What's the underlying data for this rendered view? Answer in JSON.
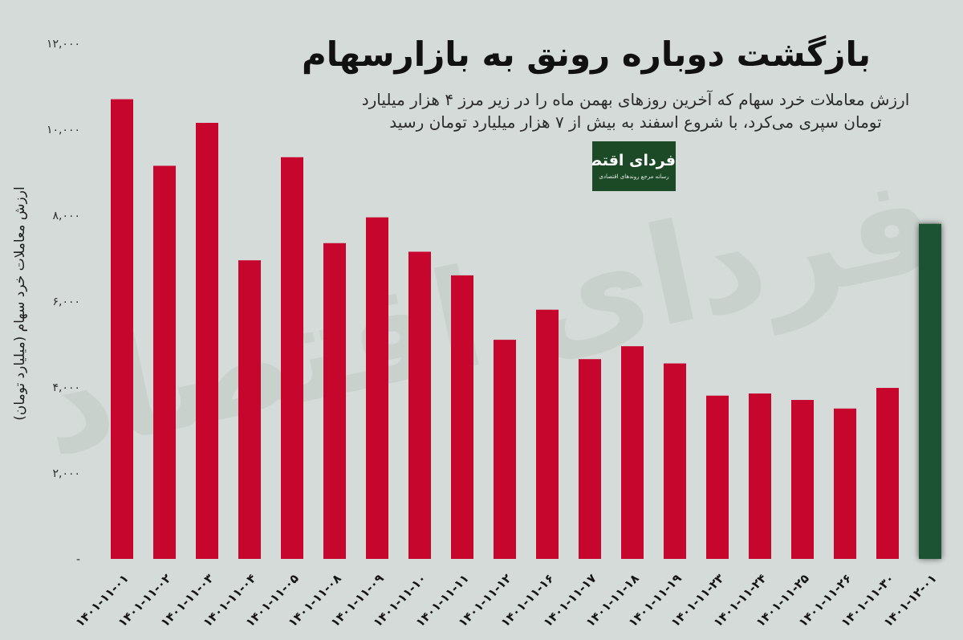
{
  "brand": {
    "name": "فردای اقتصاد",
    "tagline": "رسانه مرجع روندهای اقتصادی"
  },
  "watermark": {
    "text": "فردای اقتصاد"
  },
  "chart_data": {
    "type": "bar",
    "title": "بازگشت دوباره رونق به بازارسهام",
    "subtitle": [
      "ارزش معاملات خرد سهام که آخرین روزهای بهمن ماه را در زیر مرز ۴ هزار میلیارد",
      "تومان سپری می‌کرد، با شروع اسفند به بیش از ۷ هزار میلیارد تومان رسید"
    ],
    "ylabel": "ارزش معاملات خرد سهام (میلیارد تومان)",
    "ylim": [
      0,
      12000
    ],
    "yticks": [
      12000,
      10000,
      8000,
      6000,
      4000,
      2000,
      0
    ],
    "ytick_labels": [
      "۱۲,۰۰۰",
      "۱۰,۰۰۰",
      "۸,۰۰۰",
      "۶,۰۰۰",
      "۴,۰۰۰",
      "۲,۰۰۰",
      "-"
    ],
    "grid": false,
    "categories": [
      "۱۴۰۱-۱۱-۰۱",
      "۱۴۰۱-۱۱-۰۲",
      "۱۴۰۱-۱۱-۰۳",
      "۱۴۰۱-۱۱-۰۴",
      "۱۴۰۱-۱۱-۰۵",
      "۱۴۰۱-۱۱-۰۸",
      "۱۴۰۱-۱۱-۰۹",
      "۱۴۰۱-۱۱-۱۰",
      "۱۴۰۱-۱۱-۱۱",
      "۱۴۰۱-۱۱-۱۲",
      "۱۴۰۱-۱۱-۱۶",
      "۱۴۰۱-۱۱-۱۷",
      "۱۴۰۱-۱۱-۱۸",
      "۱۴۰۱-۱۱-۱۹",
      "۱۴۰۱-۱۱-۲۳",
      "۱۴۰۱-۱۱-۲۴",
      "۱۴۰۱-۱۱-۲۵",
      "۱۴۰۱-۱۱-۲۶",
      "۱۴۰۱-۱۱-۳۰",
      "۱۴۰۱-۱۲-۰۱"
    ],
    "values": [
      10700,
      9150,
      10150,
      6950,
      9350,
      7350,
      7950,
      7150,
      6600,
      5100,
      5800,
      4650,
      4950,
      4550,
      3800,
      3850,
      3700,
      3500,
      3980,
      7800
    ],
    "colors": [
      "#c7062e",
      "#c7062e",
      "#c7062e",
      "#c7062e",
      "#c7062e",
      "#c7062e",
      "#c7062e",
      "#c7062e",
      "#c7062e",
      "#c7062e",
      "#c7062e",
      "#c7062e",
      "#c7062e",
      "#c7062e",
      "#c7062e",
      "#c7062e",
      "#c7062e",
      "#c7062e",
      "#c7062e",
      "#1e5230"
    ]
  }
}
